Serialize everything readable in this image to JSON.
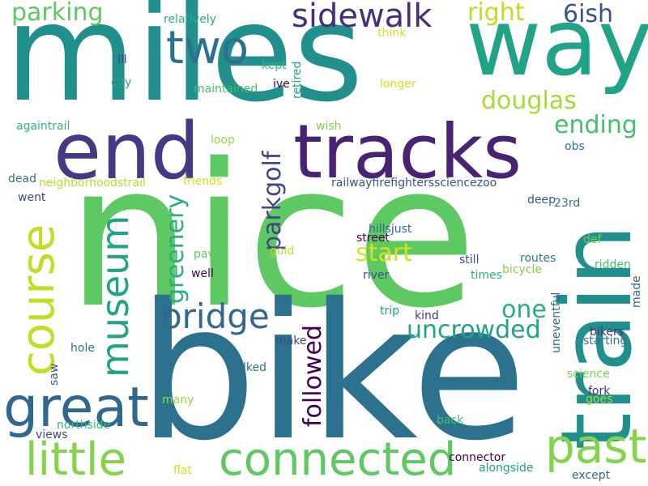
{
  "words": [
    {
      "text": "miles",
      "color": "#21908d",
      "vertical": false
    },
    {
      "text": "nice",
      "color": "#5ec962",
      "vertical": false
    },
    {
      "text": "bike",
      "color": "#2c728e",
      "vertical": false
    },
    {
      "text": "way",
      "color": "#20a386",
      "vertical": false
    },
    {
      "text": "tracks",
      "color": "#482374",
      "vertical": false
    },
    {
      "text": "end",
      "color": "#443983",
      "vertical": false
    },
    {
      "text": "train",
      "color": "#21908d",
      "vertical": true
    },
    {
      "text": "course",
      "color": "#bddf26",
      "vertical": true
    },
    {
      "text": "great",
      "color": "#31688e",
      "vertical": false
    },
    {
      "text": "museum",
      "color": "#20a386",
      "vertical": true
    },
    {
      "text": "connected",
      "color": "#5ec962",
      "vertical": false
    },
    {
      "text": "past",
      "color": "#84d44b",
      "vertical": false
    },
    {
      "text": "little",
      "color": "#84d44b",
      "vertical": false
    },
    {
      "text": "two",
      "color": "#2c728e",
      "vertical": false
    },
    {
      "text": "sidewalk",
      "color": "#472d7b",
      "vertical": false
    },
    {
      "text": "bridge",
      "color": "#31688e",
      "vertical": false
    },
    {
      "text": "parking",
      "color": "#5ec962",
      "vertical": false
    },
    {
      "text": "right",
      "color": "#bddf26",
      "vertical": false
    },
    {
      "text": "6ish",
      "color": "#3b528b",
      "vertical": false
    },
    {
      "text": "douglas",
      "color": "#a5db36",
      "vertical": false
    },
    {
      "text": "ending",
      "color": "#44bf70",
      "vertical": false
    },
    {
      "text": "parkgolf",
      "color": "#414487",
      "vertical": true
    },
    {
      "text": "greenery",
      "color": "#29af7f",
      "vertical": true
    },
    {
      "text": "start",
      "color": "#d2e21b",
      "vertical": false
    },
    {
      "text": "one",
      "color": "#29af7f",
      "vertical": false
    },
    {
      "text": "uncrowded",
      "color": "#20a386",
      "vertical": false
    },
    {
      "text": "followed",
      "color": "#440154",
      "vertical": true
    },
    {
      "text": "relatively",
      "color": "#29af7f",
      "vertical": false
    },
    {
      "text": "think",
      "color": "#d2e21b",
      "vertical": false
    },
    {
      "text": "kept",
      "color": "#35b779",
      "vertical": false
    },
    {
      "text": "retired",
      "color": "#20a386",
      "vertical": true
    },
    {
      "text": "ill",
      "color": "#443983",
      "vertical": false
    },
    {
      "text": "city",
      "color": "#22a785",
      "vertical": false
    },
    {
      "text": "maintained",
      "color": "#44bf70",
      "vertical": false
    },
    {
      "text": "ive",
      "color": "#440154",
      "vertical": false
    },
    {
      "text": "longer",
      "color": "#d2e21b",
      "vertical": false
    },
    {
      "text": "againtrail",
      "color": "#35b779",
      "vertical": false
    },
    {
      "text": "wish",
      "color": "#7ad151",
      "vertical": false
    },
    {
      "text": "loop",
      "color": "#95d840",
      "vertical": false
    },
    {
      "text": "obs",
      "color": "#2c728e",
      "vertical": false
    },
    {
      "text": "dead",
      "color": "#2c728e",
      "vertical": false
    },
    {
      "text": "neighborhoodstrail",
      "color": "#b5de2b",
      "vertical": false
    },
    {
      "text": "friends",
      "color": "#d2e21b",
      "vertical": false
    },
    {
      "text": "railwayfirefighterssciencezoo",
      "color": "#3b528b",
      "vertical": false
    },
    {
      "text": "went",
      "color": "#3e4989",
      "vertical": false
    },
    {
      "text": "deep",
      "color": "#38588c",
      "vertical": false
    },
    {
      "text": "23rd",
      "color": "#2a788e",
      "vertical": false
    },
    {
      "text": "hillsjust",
      "color": "#31688e",
      "vertical": false
    },
    {
      "text": "street",
      "color": "#440154",
      "vertical": false
    },
    {
      "text": "def",
      "color": "#6ece58",
      "vertical": false
    },
    {
      "text": "paved",
      "color": "#5ec962",
      "vertical": false
    },
    {
      "text": "gold",
      "color": "#bddf26",
      "vertical": false
    },
    {
      "text": "still",
      "color": "#3e4989",
      "vertical": false
    },
    {
      "text": "routes",
      "color": "#2a788e",
      "vertical": false
    },
    {
      "text": "well",
      "color": "#440154",
      "vertical": false
    },
    {
      "text": "bicycle",
      "color": "#84d44b",
      "vertical": false
    },
    {
      "text": "river",
      "color": "#3b528b",
      "vertical": false
    },
    {
      "text": "times",
      "color": "#29af7f",
      "vertical": false
    },
    {
      "text": "ridden",
      "color": "#44bf70",
      "vertical": false
    },
    {
      "text": "made",
      "color": "#31688e",
      "vertical": true
    },
    {
      "text": "trip",
      "color": "#1fa187",
      "vertical": false
    },
    {
      "text": "uneventful",
      "color": "#31688e",
      "vertical": true
    },
    {
      "text": "kind",
      "color": "#443983",
      "vertical": false
    },
    {
      "text": "make",
      "color": "#414487",
      "vertical": false
    },
    {
      "text": "bikers",
      "color": "#472d7b",
      "vertical": false
    },
    {
      "text": "starting",
      "color": "#2c728e",
      "vertical": false
    },
    {
      "text": "hole",
      "color": "#2a788e",
      "vertical": false
    },
    {
      "text": "walked",
      "color": "#2c728e",
      "vertical": false
    },
    {
      "text": "science",
      "color": "#7ad151",
      "vertical": false
    },
    {
      "text": "saw",
      "color": "#3b528b",
      "vertical": true
    },
    {
      "text": "fork",
      "color": "#46337f",
      "vertical": false
    },
    {
      "text": "goes",
      "color": "#a5db36",
      "vertical": false
    },
    {
      "text": "many",
      "color": "#95d840",
      "vertical": false
    },
    {
      "text": "northside",
      "color": "#35b779",
      "vertical": false
    },
    {
      "text": "round",
      "color": "#31688e",
      "vertical": true
    },
    {
      "text": "views",
      "color": "#3e4989",
      "vertical": false
    },
    {
      "text": "back",
      "color": "#44bf70",
      "vertical": false
    },
    {
      "text": "connector",
      "color": "#440154",
      "vertical": false
    },
    {
      "text": "flat",
      "color": "#d2e21b",
      "vertical": false
    },
    {
      "text": "alongside",
      "color": "#1fa187",
      "vertical": false
    },
    {
      "text": "except",
      "color": "#31688e",
      "vertical": false
    }
  ]
}
